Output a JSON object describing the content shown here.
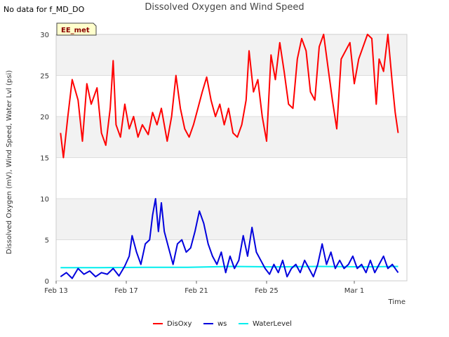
{
  "status_text": "No data for f_MD_DO",
  "badge_label": "EE_met",
  "colors": {
    "DisOxy": "#ff0000",
    "ws": "#0000dd",
    "WaterLevel": "#00eeee",
    "band": "#f2f2f2",
    "badge_bg": "#ffffcc"
  },
  "chart_data": {
    "type": "line",
    "title": "Dissolved Oxygen and Wind Speed",
    "xlabel": "Time",
    "ylabel": "Dissolved Oxygen (mV), Wind Speed, Water Lvl (psi)",
    "ylim": [
      0,
      30
    ],
    "xlim": [
      "2024-02-13",
      "2024-03-04"
    ],
    "y_ticks": [
      "0",
      "5",
      "10",
      "15",
      "20",
      "25",
      "30"
    ],
    "x_ticks": [
      {
        "date": "2024-02-13",
        "label": "Feb 13"
      },
      {
        "date": "2024-02-17",
        "label": "Feb 17"
      },
      {
        "date": "2024-02-21",
        "label": "Feb 21"
      },
      {
        "date": "2024-02-25",
        "label": "Feb 25"
      },
      {
        "date": "2024-03-01",
        "label": "Mar 1"
      }
    ],
    "legend_position": "bottom",
    "series": [
      {
        "name": "DisOxy",
        "points": [
          [
            "2024-02-13 06:00",
            18.0
          ],
          [
            "2024-02-13 10:00",
            15.0
          ],
          [
            "2024-02-13 16:00",
            20.0
          ],
          [
            "2024-02-13 22:00",
            24.5
          ],
          [
            "2024-02-14 06:00",
            22.0
          ],
          [
            "2024-02-14 12:00",
            17.0
          ],
          [
            "2024-02-14 18:00",
            24.0
          ],
          [
            "2024-02-15 00:00",
            21.5
          ],
          [
            "2024-02-15 08:00",
            23.5
          ],
          [
            "2024-02-15 14:00",
            18.0
          ],
          [
            "2024-02-15 20:00",
            16.5
          ],
          [
            "2024-02-16 02:00",
            21.0
          ],
          [
            "2024-02-16 06:00",
            26.8
          ],
          [
            "2024-02-16 10:00",
            19.0
          ],
          [
            "2024-02-16 16:00",
            17.5
          ],
          [
            "2024-02-16 22:00",
            21.5
          ],
          [
            "2024-02-17 04:00",
            18.5
          ],
          [
            "2024-02-17 10:00",
            20.0
          ],
          [
            "2024-02-17 16:00",
            17.5
          ],
          [
            "2024-02-17 22:00",
            19.0
          ],
          [
            "2024-02-18 06:00",
            17.8
          ],
          [
            "2024-02-18 12:00",
            20.5
          ],
          [
            "2024-02-18 18:00",
            19.0
          ],
          [
            "2024-02-19 00:00",
            21.0
          ],
          [
            "2024-02-19 08:00",
            17.0
          ],
          [
            "2024-02-19 14:00",
            20.0
          ],
          [
            "2024-02-19 20:00",
            25.0
          ],
          [
            "2024-02-20 02:00",
            21.0
          ],
          [
            "2024-02-20 08:00",
            18.5
          ],
          [
            "2024-02-20 14:00",
            17.5
          ],
          [
            "2024-02-20 20:00",
            19.0
          ],
          [
            "2024-02-21 02:00",
            21.0
          ],
          [
            "2024-02-21 08:00",
            23.0
          ],
          [
            "2024-02-21 14:00",
            24.8
          ],
          [
            "2024-02-21 20:00",
            22.0
          ],
          [
            "2024-02-22 02:00",
            20.0
          ],
          [
            "2024-02-22 08:00",
            21.5
          ],
          [
            "2024-02-22 14:00",
            19.0
          ],
          [
            "2024-02-22 20:00",
            21.0
          ],
          [
            "2024-02-23 02:00",
            18.0
          ],
          [
            "2024-02-23 08:00",
            17.5
          ],
          [
            "2024-02-23 14:00",
            19.0
          ],
          [
            "2024-02-23 20:00",
            22.0
          ],
          [
            "2024-02-24 00:00",
            28.0
          ],
          [
            "2024-02-24 06:00",
            23.0
          ],
          [
            "2024-02-24 12:00",
            24.5
          ],
          [
            "2024-02-24 18:00",
            20.0
          ],
          [
            "2024-02-25 00:00",
            17.0
          ],
          [
            "2024-02-25 06:00",
            27.5
          ],
          [
            "2024-02-25 12:00",
            24.5
          ],
          [
            "2024-02-25 18:00",
            29.0
          ],
          [
            "2024-02-26 00:00",
            25.5
          ],
          [
            "2024-02-26 06:00",
            21.5
          ],
          [
            "2024-02-26 12:00",
            21.0
          ],
          [
            "2024-02-26 18:00",
            27.0
          ],
          [
            "2024-02-27 00:00",
            29.5
          ],
          [
            "2024-02-27 06:00",
            28.0
          ],
          [
            "2024-02-27 12:00",
            23.0
          ],
          [
            "2024-02-27 18:00",
            22.0
          ],
          [
            "2024-02-28 00:00",
            28.5
          ],
          [
            "2024-02-28 06:00",
            30.0
          ],
          [
            "2024-02-28 12:00",
            26.0
          ],
          [
            "2024-02-28 18:00",
            22.0
          ],
          [
            "2024-02-29 00:00",
            18.5
          ],
          [
            "2024-02-29 06:00",
            27.0
          ],
          [
            "2024-02-29 18:00",
            29.0
          ],
          [
            "2024-03-01 00:00",
            24.0
          ],
          [
            "2024-03-01 06:00",
            27.0
          ],
          [
            "2024-03-01 18:00",
            30.0
          ],
          [
            "2024-03-02 00:00",
            29.5
          ],
          [
            "2024-03-02 06:00",
            21.5
          ],
          [
            "2024-03-02 10:00",
            27.0
          ],
          [
            "2024-03-02 16:00",
            25.5
          ],
          [
            "2024-03-02 22:00",
            30.0
          ],
          [
            "2024-03-03 04:00",
            24.0
          ],
          [
            "2024-03-03 08:00",
            20.5
          ],
          [
            "2024-03-03 12:00",
            18.0
          ]
        ]
      },
      {
        "name": "ws",
        "points": [
          [
            "2024-02-13 06:00",
            0.5
          ],
          [
            "2024-02-13 14:00",
            1.0
          ],
          [
            "2024-02-13 22:00",
            0.3
          ],
          [
            "2024-02-14 06:00",
            1.5
          ],
          [
            "2024-02-14 14:00",
            0.8
          ],
          [
            "2024-02-14 22:00",
            1.2
          ],
          [
            "2024-02-15 06:00",
            0.5
          ],
          [
            "2024-02-15 14:00",
            1.0
          ],
          [
            "2024-02-15 22:00",
            0.8
          ],
          [
            "2024-02-16 06:00",
            1.5
          ],
          [
            "2024-02-16 14:00",
            0.6
          ],
          [
            "2024-02-16 22:00",
            1.8
          ],
          [
            "2024-02-17 04:00",
            3.0
          ],
          [
            "2024-02-17 08:00",
            5.5
          ],
          [
            "2024-02-17 14:00",
            3.5
          ],
          [
            "2024-02-17 20:00",
            2.0
          ],
          [
            "2024-02-18 02:00",
            4.5
          ],
          [
            "2024-02-18 08:00",
            5.0
          ],
          [
            "2024-02-18 12:00",
            8.0
          ],
          [
            "2024-02-18 16:00",
            10.0
          ],
          [
            "2024-02-18 20:00",
            6.0
          ],
          [
            "2024-02-19 00:00",
            9.5
          ],
          [
            "2024-02-19 04:00",
            6.0
          ],
          [
            "2024-02-19 10:00",
            4.0
          ],
          [
            "2024-02-19 16:00",
            2.0
          ],
          [
            "2024-02-19 22:00",
            4.5
          ],
          [
            "2024-02-20 04:00",
            5.0
          ],
          [
            "2024-02-20 10:00",
            3.5
          ],
          [
            "2024-02-20 16:00",
            4.0
          ],
          [
            "2024-02-20 22:00",
            6.0
          ],
          [
            "2024-02-21 04:00",
            8.5
          ],
          [
            "2024-02-21 10:00",
            7.0
          ],
          [
            "2024-02-21 16:00",
            4.5
          ],
          [
            "2024-02-21 22:00",
            3.0
          ],
          [
            "2024-02-22 04:00",
            2.0
          ],
          [
            "2024-02-22 10:00",
            3.5
          ],
          [
            "2024-02-22 16:00",
            1.0
          ],
          [
            "2024-02-22 22:00",
            3.0
          ],
          [
            "2024-02-23 04:00",
            1.5
          ],
          [
            "2024-02-23 10:00",
            2.5
          ],
          [
            "2024-02-23 16:00",
            5.5
          ],
          [
            "2024-02-23 22:00",
            3.0
          ],
          [
            "2024-02-24 04:00",
            6.5
          ],
          [
            "2024-02-24 10:00",
            3.5
          ],
          [
            "2024-02-24 16:00",
            2.5
          ],
          [
            "2024-02-24 22:00",
            1.5
          ],
          [
            "2024-02-25 04:00",
            0.8
          ],
          [
            "2024-02-25 10:00",
            2.0
          ],
          [
            "2024-02-25 16:00",
            1.0
          ],
          [
            "2024-02-25 22:00",
            2.5
          ],
          [
            "2024-02-26 04:00",
            0.5
          ],
          [
            "2024-02-26 10:00",
            1.5
          ],
          [
            "2024-02-26 16:00",
            2.0
          ],
          [
            "2024-02-26 22:00",
            1.0
          ],
          [
            "2024-02-27 04:00",
            2.5
          ],
          [
            "2024-02-27 10:00",
            1.5
          ],
          [
            "2024-02-27 16:00",
            0.5
          ],
          [
            "2024-02-27 22:00",
            2.0
          ],
          [
            "2024-02-28 04:00",
            4.5
          ],
          [
            "2024-02-28 10:00",
            2.0
          ],
          [
            "2024-02-28 16:00",
            3.5
          ],
          [
            "2024-02-28 22:00",
            1.5
          ],
          [
            "2024-02-29 04:00",
            2.5
          ],
          [
            "2024-02-29 10:00",
            1.5
          ],
          [
            "2024-02-29 16:00",
            2.0
          ],
          [
            "2024-02-29 22:00",
            3.0
          ],
          [
            "2024-03-01 04:00",
            1.5
          ],
          [
            "2024-03-01 10:00",
            2.0
          ],
          [
            "2024-03-01 16:00",
            1.0
          ],
          [
            "2024-03-01 22:00",
            2.5
          ],
          [
            "2024-03-02 04:00",
            1.0
          ],
          [
            "2024-03-02 10:00",
            2.0
          ],
          [
            "2024-03-02 16:00",
            3.0
          ],
          [
            "2024-03-02 22:00",
            1.5
          ],
          [
            "2024-03-03 04:00",
            2.0
          ],
          [
            "2024-03-03 12:00",
            1.0
          ]
        ]
      },
      {
        "name": "WaterLevel",
        "points": [
          [
            "2024-02-13 06:00",
            1.6
          ],
          [
            "2024-02-15 12:00",
            1.6
          ],
          [
            "2024-02-18 00:00",
            1.65
          ],
          [
            "2024-02-20 12:00",
            1.65
          ],
          [
            "2024-02-23 00:00",
            1.75
          ],
          [
            "2024-02-25 12:00",
            1.7
          ],
          [
            "2024-02-28 00:00",
            1.75
          ],
          [
            "2024-03-01 12:00",
            1.7
          ],
          [
            "2024-03-03 12:00",
            1.75
          ]
        ]
      }
    ]
  }
}
